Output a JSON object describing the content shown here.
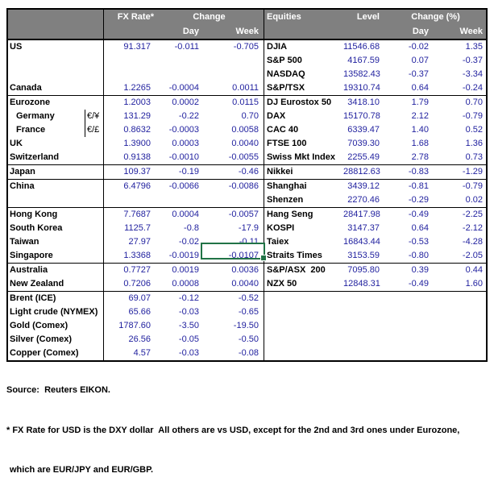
{
  "header": {
    "fx_rate": "FX Rate*",
    "change": "Change",
    "day": "Day",
    "week": "Week",
    "equities": "Equities",
    "level": "Level",
    "change_pct": "Change (%)",
    "day2": "Day",
    "week2": "Week"
  },
  "rows": [
    {
      "left": {
        "label": "US",
        "fx": "91.317",
        "day": "-0.011",
        "week": "-0.705"
      },
      "right": {
        "label": "DJIA",
        "level": "11546.68",
        "day": "-0.02",
        "week": "1.35"
      }
    },
    {
      "left": {},
      "right": {
        "label": "S&P 500",
        "level": "4167.59",
        "day": "0.07",
        "week": "-0.37"
      }
    },
    {
      "left": {},
      "right": {
        "label": "NASDAQ",
        "level": "13582.43",
        "day": "-0.37",
        "week": "-3.34"
      }
    },
    {
      "left": {
        "label": "Canada",
        "fx": "1.2265",
        "day": "-0.0004",
        "week": "0.0011"
      },
      "right": {
        "label": "S&P/TSX",
        "level": "19310.74",
        "day": "0.64",
        "week": "-0.24"
      },
      "lineBelow": true
    },
    {
      "left": {
        "label": "Eurozone",
        "fx": "1.2003",
        "day": "0.0002",
        "week": "0.0115"
      },
      "right": {
        "label": "DJ Eurostox 50",
        "level": "3418.10",
        "day": "1.79",
        "week": "0.70"
      }
    },
    {
      "left": {
        "label": "Germany",
        "indent": true,
        "cur": "€/¥",
        "fx": "131.29",
        "day": "-0.22",
        "week": "0.70"
      },
      "right": {
        "label": "DAX",
        "level": "15170.78",
        "day": "2.12",
        "week": "-0.79"
      }
    },
    {
      "left": {
        "label": "France",
        "indent": true,
        "cur": "€/£",
        "fx": "0.8632",
        "day": "-0.0003",
        "week": "0.0058"
      },
      "right": {
        "label": "CAC 40",
        "level": "6339.47",
        "day": "1.40",
        "week": "0.52"
      }
    },
    {
      "left": {
        "label": "UK",
        "fx": "1.3900",
        "day": "0.0003",
        "week": "0.0040"
      },
      "right": {
        "label": "FTSE 100",
        "level": "7039.30",
        "day": "1.68",
        "week": "1.36"
      }
    },
    {
      "left": {
        "label": "Switzerland",
        "fx": "0.9138",
        "day": "-0.0010",
        "week": "-0.0055"
      },
      "right": {
        "label": "Swiss Mkt Index",
        "level": "2255.49",
        "day": "2.78",
        "week": "0.73"
      },
      "lineBelow": true
    },
    {
      "left": {
        "label": "Japan",
        "fx": "109.37",
        "day": "-0.19",
        "week": "-0.46"
      },
      "right": {
        "label": "Nikkei",
        "level": "28812.63",
        "day": "-0.83",
        "week": "-1.29"
      },
      "lineBelow": true
    },
    {
      "left": {
        "label": "China",
        "fx": "6.4796",
        "day": "-0.0066",
        "week": "-0.0086"
      },
      "right": {
        "label": "Shanghai",
        "level": "3439.12",
        "day": "-0.81",
        "week": "-0.79"
      }
    },
    {
      "left": {},
      "right": {
        "label": "Shenzen",
        "level": "2270.46",
        "day": "-0.29",
        "week": "0.02"
      },
      "lineBelow": true
    },
    {
      "left": {
        "label": "Hong Kong",
        "fx": "7.7687",
        "day": "0.0004",
        "week": "-0.0057"
      },
      "right": {
        "label": "Hang Seng",
        "level": "28417.98",
        "day": "-0.49",
        "week": "-2.25"
      }
    },
    {
      "left": {
        "label": "South Korea",
        "fx": "1125.7",
        "day": "-0.8",
        "week": "-17.9"
      },
      "right": {
        "label": "KOSPI",
        "level": "3147.37",
        "day": "0.64",
        "week": "-2.12"
      }
    },
    {
      "left": {
        "label": "Taiwan",
        "fx": "27.97",
        "day": "-0.02",
        "week": "-0.11"
      },
      "right": {
        "label": "Taiex",
        "level": "16843.44",
        "day": "-0.53",
        "week": "-4.28"
      }
    },
    {
      "left": {
        "label": "Singapore",
        "fx": "1.3368",
        "day": "-0.0019",
        "week": "-0.0107",
        "weekSelected": true
      },
      "right": {
        "label": "Straits Times",
        "level": "3153.59",
        "day": "-0.80",
        "week": "-2.05"
      },
      "lineBelow": true
    },
    {
      "left": {
        "label": "Australia",
        "fx": "0.7727",
        "day": "0.0019",
        "week": "0.0036"
      },
      "right": {
        "label": "S&P/ASX  200",
        "level": "7095.80",
        "day": "0.39",
        "week": "0.44"
      }
    },
    {
      "left": {
        "label": "New Zealand",
        "fx": "0.7206",
        "day": "0.0008",
        "week": "0.0040"
      },
      "right": {
        "label": "NZX 50",
        "level": "12848.31",
        "day": "-0.49",
        "week": "1.60"
      },
      "lineBelow": true
    },
    {
      "left": {
        "label": "Brent (ICE)",
        "fx": "69.07",
        "day": "-0.12",
        "week": "-0.52"
      },
      "right": {}
    },
    {
      "left": {
        "label": "Light crude (NYMEX)",
        "fx": "65.66",
        "day": "-0.03",
        "week": "-0.65"
      },
      "right": {}
    },
    {
      "left": {
        "label": "Gold (Comex)",
        "fx": "1787.60",
        "day": "-3.50",
        "week": "-19.50"
      },
      "right": {}
    },
    {
      "left": {
        "label": "Silver (Comex)",
        "fx": "26.56",
        "day": "-0.05",
        "week": "-0.50"
      },
      "right": {}
    },
    {
      "left": {
        "label": "Copper (Comex)",
        "fx": "4.57",
        "day": "-0.03",
        "week": "-0.08"
      },
      "right": {}
    }
  ],
  "selection": {
    "row_label": "Singapore",
    "column": "Week",
    "value": "-0.0107",
    "border_color": "#217346"
  },
  "footer": {
    "source": "Source:  Reuters EIKON.",
    "note1": "* FX Rate for USD is the DXY dollar  All others are vs USD, except for the 2nd and 3rd ones under Eurozone,",
    "note2": "which are EUR/JPY and EUR/GBP."
  },
  "colors": {
    "header_bg": "#808080",
    "header_text": "#ffffff",
    "number_text": "#1f1f9e",
    "label_text": "#000000",
    "border": "#000000",
    "selection_green": "#217346"
  }
}
